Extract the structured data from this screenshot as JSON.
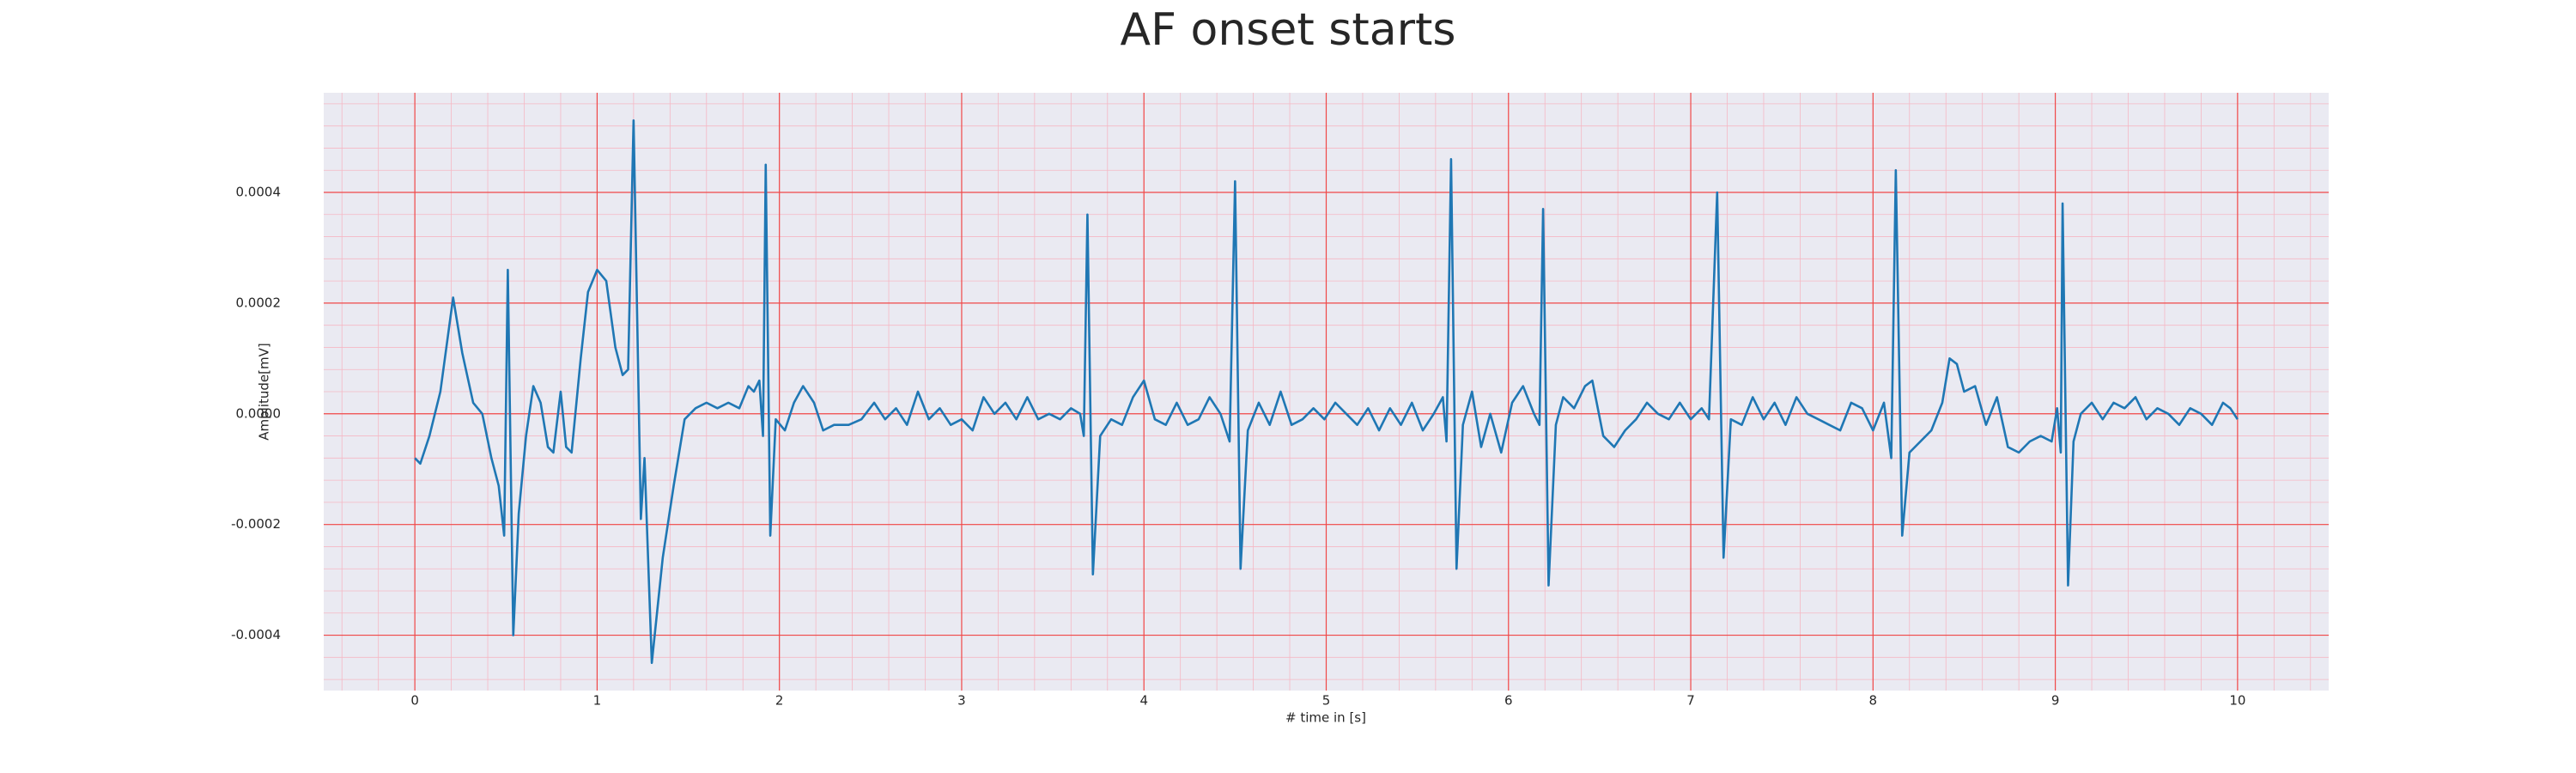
{
  "chart_data": {
    "type": "line",
    "title": "AF onset starts",
    "x_label": "# time in [s]",
    "y_label": "Amplitude[mV]",
    "color": "#1f77b4",
    "grid": true,
    "minor_grid": true,
    "xlim": [
      -0.5,
      10.5
    ],
    "ylim": [
      -0.0005,
      0.00058
    ],
    "xticks": [
      0,
      1,
      2,
      3,
      4,
      5,
      6,
      7,
      8,
      9,
      10
    ],
    "yticks": [
      {
        "value": -0.0004,
        "label": "-0.0004"
      },
      {
        "value": -0.0002,
        "label": "-0.0002"
      },
      {
        "value": 0,
        "label": "0.0000"
      },
      {
        "value": 0.0002,
        "label": "0.0002"
      },
      {
        "value": 0.0004,
        "label": "0.0004"
      }
    ],
    "x": [
      0,
      0.03,
      0.08,
      0.14,
      0.21,
      0.26,
      0.32,
      0.37,
      0.42,
      0.46,
      0.49,
      0.51,
      0.54,
      0.57,
      0.61,
      0.65,
      0.69,
      0.73,
      0.76,
      0.8,
      0.83,
      0.86,
      0.91,
      0.95,
      1.0,
      1.05,
      1.1,
      1.14,
      1.17,
      1.2,
      1.24,
      1.26,
      1.3,
      1.36,
      1.42,
      1.48,
      1.54,
      1.6,
      1.66,
      1.72,
      1.78,
      1.83,
      1.86,
      1.89,
      1.91,
      1.925,
      1.95,
      1.98,
      2.03,
      2.08,
      2.13,
      2.19,
      2.24,
      2.3,
      2.38,
      2.45,
      2.52,
      2.58,
      2.64,
      2.7,
      2.76,
      2.82,
      2.88,
      2.94,
      3.0,
      3.06,
      3.12,
      3.18,
      3.24,
      3.3,
      3.36,
      3.42,
      3.48,
      3.54,
      3.6,
      3.65,
      3.67,
      3.69,
      3.72,
      3.76,
      3.82,
      3.88,
      3.94,
      4.0,
      4.06,
      4.12,
      4.18,
      4.24,
      4.3,
      4.36,
      4.42,
      4.47,
      4.5,
      4.53,
      4.57,
      4.63,
      4.69,
      4.75,
      4.81,
      4.87,
      4.93,
      4.99,
      5.05,
      5.11,
      5.17,
      5.23,
      5.29,
      5.35,
      5.41,
      5.47,
      5.53,
      5.59,
      5.64,
      5.66,
      5.685,
      5.715,
      5.75,
      5.8,
      5.85,
      5.9,
      5.96,
      6.02,
      6.08,
      6.14,
      6.17,
      6.19,
      6.22,
      6.26,
      6.3,
      6.36,
      6.42,
      6.46,
      6.52,
      6.58,
      6.64,
      6.7,
      6.76,
      6.82,
      6.88,
      6.94,
      7.0,
      7.06,
      7.1,
      7.145,
      7.18,
      7.22,
      7.28,
      7.34,
      7.4,
      7.46,
      7.52,
      7.58,
      7.64,
      7.7,
      7.76,
      7.82,
      7.88,
      7.94,
      8.0,
      8.06,
      8.1,
      8.125,
      8.16,
      8.2,
      8.26,
      8.32,
      8.38,
      8.42,
      8.46,
      8.5,
      8.56,
      8.62,
      8.68,
      8.74,
      8.8,
      8.86,
      8.92,
      8.98,
      9.01,
      9.03,
      9.04,
      9.07,
      9.1,
      9.14,
      9.2,
      9.26,
      9.32,
      9.38,
      9.44,
      9.5,
      9.56,
      9.62,
      9.68,
      9.74,
      9.8,
      9.86,
      9.92,
      9.96,
      10.0
    ],
    "values": [
      -8e-05,
      -9e-05,
      -4e-05,
      4e-05,
      0.00021,
      0.00011,
      2e-05,
      0,
      -8e-05,
      -0.00013,
      -0.00022,
      0.00026,
      -0.0004,
      -0.00018,
      -4e-05,
      5e-05,
      2e-05,
      -6e-05,
      -7e-05,
      4e-05,
      -6e-05,
      -7e-05,
      0.0001,
      0.00022,
      0.00026,
      0.00024,
      0.00012,
      7e-05,
      8e-05,
      0.00053,
      -0.00019,
      -8e-05,
      -0.00045,
      -0.00026,
      -0.00013,
      -1e-05,
      1e-05,
      2e-05,
      1e-05,
      2e-05,
      1e-05,
      5e-05,
      4e-05,
      6e-05,
      -4e-05,
      0.00045,
      -0.00022,
      -1e-05,
      -3e-05,
      2e-05,
      5e-05,
      2e-05,
      -3e-05,
      -2e-05,
      -2e-05,
      -1e-05,
      2e-05,
      -1e-05,
      1e-05,
      -2e-05,
      4e-05,
      -1e-05,
      1e-05,
      -2e-05,
      -1e-05,
      -3e-05,
      3e-05,
      0,
      2e-05,
      -1e-05,
      3e-05,
      -1e-05,
      0,
      -1e-05,
      1e-05,
      0,
      -4e-05,
      0.00036,
      -0.00029,
      -4e-05,
      -1e-05,
      -2e-05,
      3e-05,
      6e-05,
      -1e-05,
      -2e-05,
      2e-05,
      -2e-05,
      -1e-05,
      3e-05,
      0,
      -5e-05,
      0.00042,
      -0.00028,
      -3e-05,
      2e-05,
      -2e-05,
      4e-05,
      -2e-05,
      -1e-05,
      1e-05,
      -1e-05,
      2e-05,
      0,
      -2e-05,
      1e-05,
      -3e-05,
      1e-05,
      -2e-05,
      2e-05,
      -3e-05,
      0,
      3e-05,
      -5e-05,
      0.00046,
      -0.00028,
      -2e-05,
      4e-05,
      -6e-05,
      0,
      -7e-05,
      2e-05,
      5e-05,
      0,
      -2e-05,
      0.00037,
      -0.00031,
      -2e-05,
      3e-05,
      1e-05,
      5e-05,
      6e-05,
      -4e-05,
      -6e-05,
      -3e-05,
      -1e-05,
      2e-05,
      0,
      -1e-05,
      2e-05,
      -1e-05,
      1e-05,
      -1e-05,
      0.0004,
      -0.00026,
      -1e-05,
      -2e-05,
      3e-05,
      -1e-05,
      2e-05,
      -2e-05,
      3e-05,
      0,
      -1e-05,
      -2e-05,
      -3e-05,
      2e-05,
      1e-05,
      -3e-05,
      2e-05,
      -8e-05,
      0.00044,
      -0.00022,
      -7e-05,
      -5e-05,
      -3e-05,
      2e-05,
      0.0001,
      9e-05,
      4e-05,
      5e-05,
      -2e-05,
      3e-05,
      -6e-05,
      -7e-05,
      -5e-05,
      -4e-05,
      -5e-05,
      1e-05,
      -7e-05,
      0.00038,
      -0.00031,
      -5e-05,
      0,
      2e-05,
      -1e-05,
      2e-05,
      1e-05,
      3e-05,
      -1e-05,
      1e-05,
      0,
      -2e-05,
      1e-05,
      0,
      -2e-05,
      2e-05,
      1e-05,
      -1e-05
    ]
  }
}
